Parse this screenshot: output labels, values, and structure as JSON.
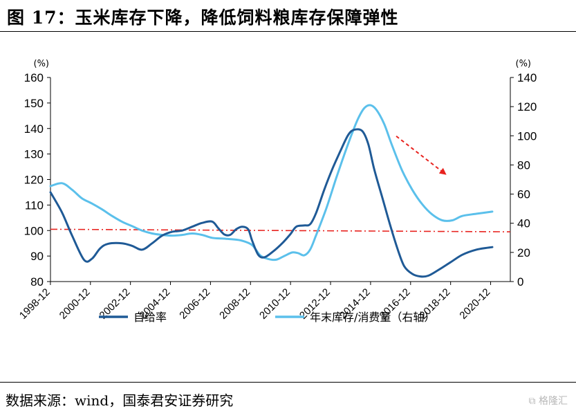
{
  "title": "图 17：玉米库存下降，降低饲料粮库存保障弹性",
  "footer": "数据来源：wind，国泰君安证券研究",
  "watermark": "格隆汇",
  "colors": {
    "series_self_sufficiency": "#1F5A96",
    "series_stock_ratio": "#5BC0EB",
    "reference_line": "#E8231F",
    "trend_arrow": "#E8231F",
    "axis": "#000000"
  },
  "chart_data": {
    "type": "line",
    "left_axis": {
      "unit": "(%)",
      "ylim": [
        80,
        160
      ],
      "ticks": [
        80,
        90,
        100,
        110,
        120,
        130,
        140,
        150,
        160
      ]
    },
    "right_axis": {
      "unit": "(%)",
      "ylim": [
        0,
        140
      ],
      "ticks": [
        0,
        20,
        40,
        60,
        80,
        100,
        120,
        140
      ]
    },
    "x_range": [
      1998.92,
      2021.9
    ],
    "x_ticks": [
      "1998-12",
      "2000-12",
      "2002-12",
      "2004-12",
      "2006-12",
      "2008-12",
      "2010-12",
      "2012-12",
      "2014-12",
      "2016-12",
      "2018-12",
      "2020-12"
    ],
    "grid": false,
    "legend_position": "bottom",
    "series": [
      {
        "name": "自给率",
        "axis": "left",
        "color": "#1F5A96",
        "points": [
          [
            1998.92,
            115
          ],
          [
            1999.5,
            107
          ],
          [
            2000.0,
            98
          ],
          [
            2000.6,
            88.5
          ],
          [
            2001.0,
            89
          ],
          [
            2001.4,
            93
          ],
          [
            2001.8,
            94.8
          ],
          [
            2002.5,
            95
          ],
          [
            2003.0,
            94
          ],
          [
            2003.5,
            92.5
          ],
          [
            2004.0,
            95
          ],
          [
            2004.5,
            98
          ],
          [
            2005.0,
            99.5
          ],
          [
            2005.5,
            100
          ],
          [
            2006.0,
            101.5
          ],
          [
            2006.5,
            103
          ],
          [
            2007.0,
            103.5
          ],
          [
            2007.3,
            101
          ],
          [
            2007.6,
            98.5
          ],
          [
            2007.9,
            98.3
          ],
          [
            2008.2,
            100.5
          ],
          [
            2008.5,
            101.5
          ],
          [
            2008.8,
            100.5
          ],
          [
            2009.0,
            96
          ],
          [
            2009.3,
            90.5
          ],
          [
            2009.6,
            89.5
          ],
          [
            2010.0,
            91.5
          ],
          [
            2010.5,
            95
          ],
          [
            2010.9,
            98.5
          ],
          [
            2011.2,
            101.5
          ],
          [
            2011.6,
            102
          ],
          [
            2011.9,
            102.5
          ],
          [
            2012.2,
            107
          ],
          [
            2012.6,
            116
          ],
          [
            2013.0,
            124
          ],
          [
            2013.4,
            131
          ],
          [
            2013.8,
            137.5
          ],
          [
            2014.1,
            139.5
          ],
          [
            2014.5,
            139
          ],
          [
            2014.8,
            134
          ],
          [
            2015.1,
            124
          ],
          [
            2015.5,
            113
          ],
          [
            2015.9,
            102
          ],
          [
            2016.3,
            92
          ],
          [
            2016.6,
            86
          ],
          [
            2017.0,
            83
          ],
          [
            2017.4,
            82
          ],
          [
            2017.8,
            82.3
          ],
          [
            2018.3,
            84.5
          ],
          [
            2018.9,
            87.5
          ],
          [
            2019.5,
            90.5
          ],
          [
            2020.2,
            92.5
          ],
          [
            2021.0,
            93.5
          ]
        ]
      },
      {
        "name": "年末库存/消费量（右轴）",
        "axis": "right",
        "color": "#5BC0EB",
        "points": [
          [
            1998.92,
            65.5
          ],
          [
            1999.5,
            67.5
          ],
          [
            2000.0,
            63
          ],
          [
            2000.5,
            57
          ],
          [
            2001.0,
            53.5
          ],
          [
            2001.5,
            49.5
          ],
          [
            2002.0,
            45
          ],
          [
            2002.5,
            41
          ],
          [
            2003.0,
            38
          ],
          [
            2003.5,
            35
          ],
          [
            2004.0,
            33
          ],
          [
            2004.5,
            32
          ],
          [
            2005.0,
            31.5
          ],
          [
            2005.5,
            32
          ],
          [
            2006.0,
            33
          ],
          [
            2006.5,
            32
          ],
          [
            2007.0,
            30
          ],
          [
            2007.5,
            29.5
          ],
          [
            2008.0,
            29
          ],
          [
            2008.5,
            28
          ],
          [
            2009.0,
            25
          ],
          [
            2009.4,
            18
          ],
          [
            2009.8,
            15.5
          ],
          [
            2010.2,
            15
          ],
          [
            2010.6,
            17.5
          ],
          [
            2011.0,
            20
          ],
          [
            2011.3,
            19.5
          ],
          [
            2011.6,
            18
          ],
          [
            2011.9,
            22
          ],
          [
            2012.2,
            32
          ],
          [
            2012.7,
            50
          ],
          [
            2013.2,
            71
          ],
          [
            2013.6,
            87
          ],
          [
            2014.0,
            102
          ],
          [
            2014.3,
            112
          ],
          [
            2014.6,
            119
          ],
          [
            2014.9,
            121
          ],
          [
            2015.2,
            118
          ],
          [
            2015.6,
            108
          ],
          [
            2016.0,
            93
          ],
          [
            2016.5,
            76
          ],
          [
            2017.0,
            63
          ],
          [
            2017.5,
            53
          ],
          [
            2018.0,
            46
          ],
          [
            2018.5,
            42
          ],
          [
            2019.0,
            42
          ],
          [
            2019.5,
            45
          ],
          [
            2020.2,
            46.5
          ],
          [
            2021.0,
            48
          ]
        ]
      }
    ],
    "reference_line": {
      "axis": "left",
      "y_start": 100.5,
      "y_end": 99.5,
      "style": "dash-dot"
    },
    "trend_arrow": {
      "from": [
        2016.2,
        137
      ],
      "to": [
        2018.6,
        122.5
      ],
      "axis": "left",
      "style": "dashed"
    }
  }
}
